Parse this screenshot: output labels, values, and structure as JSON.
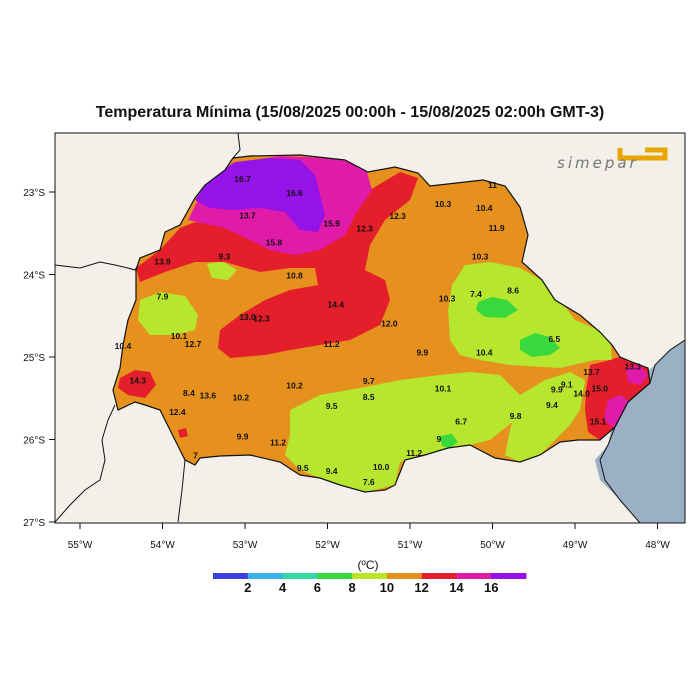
{
  "title": "Temperatura Mínima (15/08/2025 00:00h - 15/08/2025 02:00h GMT-3)",
  "logo_text": "simepar",
  "colorbar": {
    "unit": "(ºC)",
    "labels": [
      "2",
      "4",
      "6",
      "8",
      "10",
      "12",
      "14",
      "16"
    ],
    "colors": [
      "#3d3ddc",
      "#37b3e8",
      "#36d6a6",
      "#39d93e",
      "#b7e62e",
      "#e6901e",
      "#e41e2b",
      "#e01aa9",
      "#9512e8"
    ]
  },
  "axes": {
    "lon_labels": [
      "55°W",
      "54°W",
      "53°W",
      "52°W",
      "51°W",
      "50°W",
      "49°W",
      "48°W"
    ],
    "lat_labels": [
      "23°S",
      "24°S",
      "25°S",
      "26°S",
      "27°S"
    ]
  },
  "colors": {
    "background": "#f2f0e9",
    "ocean": "#9bb0c5",
    "purple": "#9512e8",
    "magenta": "#e01aa9",
    "red": "#e41e2b",
    "orange": "#e6901e",
    "lime": "#b7e62e",
    "green": "#39d93e"
  },
  "stations": [
    {
      "v": "16.7",
      "lon": -53.03,
      "lat": -22.88
    },
    {
      "v": "16.6",
      "lon": -52.4,
      "lat": -23.05
    },
    {
      "v": "13.7",
      "lon": -52.97,
      "lat": -23.32
    },
    {
      "v": "15.9",
      "lon": -51.95,
      "lat": -23.42
    },
    {
      "v": "15.8",
      "lon": -52.65,
      "lat": -23.65
    },
    {
      "v": "12.3",
      "lon": -51.55,
      "lat": -23.48
    },
    {
      "v": "12.3",
      "lon": -51.15,
      "lat": -23.33
    },
    {
      "v": "10.3",
      "lon": -50.6,
      "lat": -23.18
    },
    {
      "v": "10.4",
      "lon": -50.1,
      "lat": -23.23
    },
    {
      "v": "11",
      "lon": -50.0,
      "lat": -22.95
    },
    {
      "v": "11.9",
      "lon": -49.95,
      "lat": -23.47
    },
    {
      "v": "10.3",
      "lon": -50.15,
      "lat": -23.82
    },
    {
      "v": "13.9",
      "lon": -54.0,
      "lat": -23.88
    },
    {
      "v": "9.3",
      "lon": -53.25,
      "lat": -23.82
    },
    {
      "v": "10.8",
      "lon": -52.4,
      "lat": -24.05
    },
    {
      "v": "7.9",
      "lon": -54.0,
      "lat": -24.3
    },
    {
      "v": "10.3",
      "lon": -50.55,
      "lat": -24.33
    },
    {
      "v": "7.4",
      "lon": -50.2,
      "lat": -24.27
    },
    {
      "v": "8.6",
      "lon": -49.75,
      "lat": -24.23
    },
    {
      "v": "14.4",
      "lon": -51.9,
      "lat": -24.4
    },
    {
      "v": "10.1",
      "lon": -53.8,
      "lat": -24.78
    },
    {
      "v": "12.7",
      "lon": -53.63,
      "lat": -24.88
    },
    {
      "v": "13.0",
      "lon": -52.97,
      "lat": -24.55
    },
    {
      "v": "12.3",
      "lon": -52.8,
      "lat": -24.57
    },
    {
      "v": "12.0",
      "lon": -51.25,
      "lat": -24.63
    },
    {
      "v": "11.2",
      "lon": -51.95,
      "lat": -24.88
    },
    {
      "v": "10.4",
      "lon": -54.48,
      "lat": -24.9
    },
    {
      "v": "9.9",
      "lon": -50.85,
      "lat": -24.98
    },
    {
      "v": "10.4",
      "lon": -50.1,
      "lat": -24.98
    },
    {
      "v": "6.5",
      "lon": -49.25,
      "lat": -24.82
    },
    {
      "v": "14.3",
      "lon": -54.3,
      "lat": -25.32
    },
    {
      "v": "8.4",
      "lon": -53.68,
      "lat": -25.47
    },
    {
      "v": "13.6",
      "lon": -53.45,
      "lat": -25.5
    },
    {
      "v": "10.2",
      "lon": -53.05,
      "lat": -25.53
    },
    {
      "v": "10.2",
      "lon": -52.4,
      "lat": -25.38
    },
    {
      "v": "9.7",
      "lon": -51.5,
      "lat": -25.33
    },
    {
      "v": "8.5",
      "lon": -51.5,
      "lat": -25.52
    },
    {
      "v": "10.1",
      "lon": -50.6,
      "lat": -25.42
    },
    {
      "v": "9.5",
      "lon": -51.95,
      "lat": -25.63
    },
    {
      "v": "12.4",
      "lon": -53.82,
      "lat": -25.7
    },
    {
      "v": "6.7",
      "lon": -50.38,
      "lat": -25.82
    },
    {
      "v": "9.8",
      "lon": -49.72,
      "lat": -25.75
    },
    {
      "v": "9.9",
      "lon": -49.22,
      "lat": -25.43
    },
    {
      "v": "9.1",
      "lon": -49.1,
      "lat": -25.37
    },
    {
      "v": "9.4",
      "lon": -49.28,
      "lat": -25.62
    },
    {
      "v": "13.7",
      "lon": -48.8,
      "lat": -25.22
    },
    {
      "v": "13.3",
      "lon": -48.3,
      "lat": -25.15
    },
    {
      "v": "15.0",
      "lon": -48.7,
      "lat": -25.42
    },
    {
      "v": "14.0",
      "lon": -48.92,
      "lat": -25.48
    },
    {
      "v": "15.1",
      "lon": -48.72,
      "lat": -25.82
    },
    {
      "v": "9.9",
      "lon": -53.03,
      "lat": -26.0
    },
    {
      "v": "11.2",
      "lon": -52.6,
      "lat": -26.07
    },
    {
      "v": "11.2",
      "lon": -50.95,
      "lat": -26.2
    },
    {
      "v": "10.0",
      "lon": -51.35,
      "lat": -26.37
    },
    {
      "v": "9.5",
      "lon": -52.3,
      "lat": -26.38
    },
    {
      "v": "9.4",
      "lon": -51.95,
      "lat": -26.42
    },
    {
      "v": "7.6",
      "lon": -51.5,
      "lat": -26.55
    },
    {
      "v": "7",
      "lon": -53.6,
      "lat": -26.23
    },
    {
      "v": "9",
      "lon": -50.65,
      "lat": -26.03
    }
  ]
}
